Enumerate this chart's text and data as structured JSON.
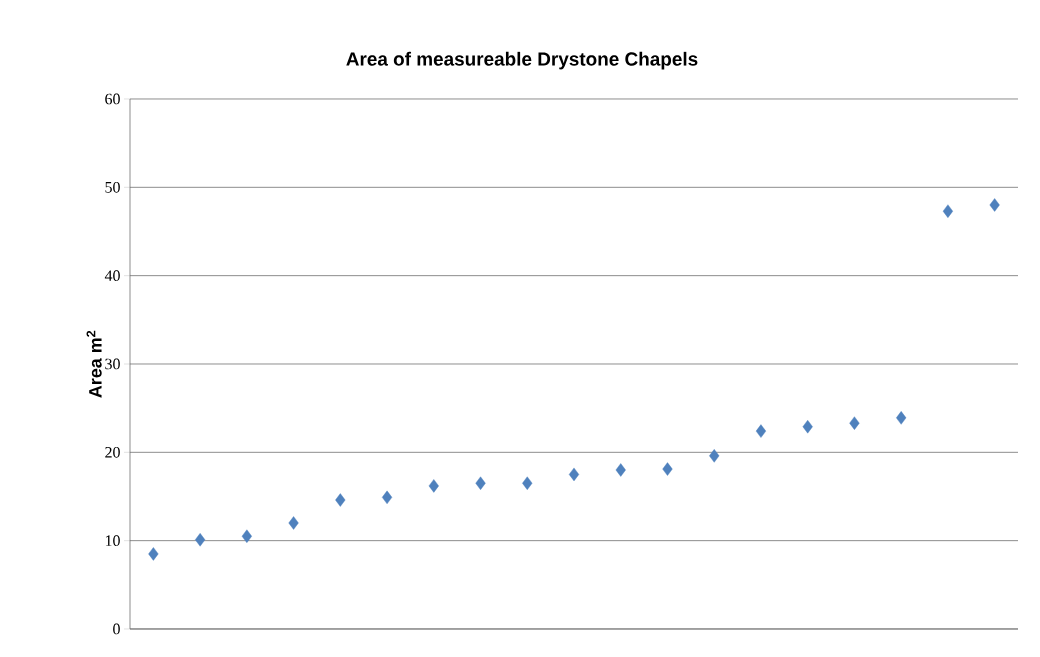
{
  "chart_data": {
    "type": "scatter",
    "title": "Area of measureable Drystone Chapels",
    "ylabel": "Area m$^{2}$",
    "categories": [
      null,
      null,
      null,
      null,
      null,
      null,
      null,
      null,
      null,
      null,
      null,
      null,
      null,
      null,
      null,
      null,
      null,
      null,
      null
    ],
    "series": [
      {
        "color": "#4f81bd",
        "values": [
          8.5,
          10.1,
          10.5,
          12.0,
          14.6,
          14.9,
          16.2,
          16.5,
          16.5,
          17.5,
          18.0,
          18.1,
          19.6,
          22.4,
          22.9,
          23.3,
          23.9,
          47.3,
          48.0
        ]
      }
    ],
    "ylim": [
      0,
      60
    ],
    "yticks": [
      0,
      10,
      20,
      30,
      40,
      50,
      60
    ],
    "grid": "y",
    "marker": "diamond"
  }
}
